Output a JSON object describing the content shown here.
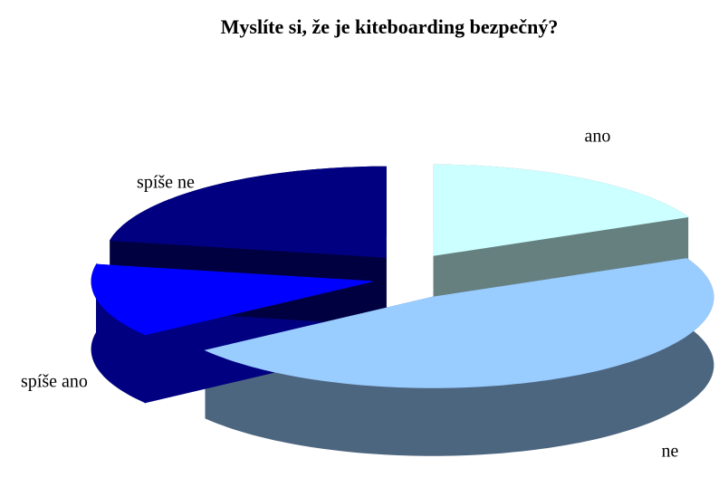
{
  "chart_data": {
    "type": "pie",
    "title": "Myslíte si, že je kiteboarding bezpečný?",
    "categories": [
      "ano",
      "ne",
      "spíše ano",
      "spíše ne"
    ],
    "values": [
      18,
      47,
      13,
      22
    ],
    "colors": [
      "#ccffff",
      "#99ccff",
      "#0000ff",
      "#000080"
    ],
    "side_colors": [
      "#668080",
      "#4d6680",
      "#000080",
      "#000040"
    ]
  }
}
